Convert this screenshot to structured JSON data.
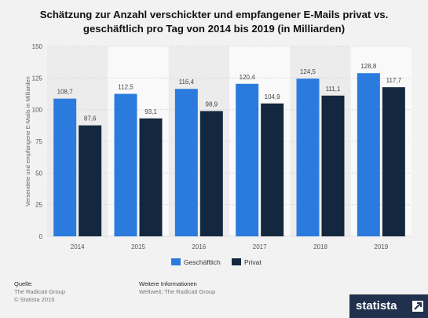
{
  "title": "Schätzung zur Anzahl verschickter und empfangener E-Mails privat vs. geschäftlich pro Tag von 2014 bis 2019 (in Milliarden)",
  "footer": {
    "source_heading": "Quelle:",
    "source_line1": "The Radicati Group",
    "source_line2": "© Statista 2015",
    "info_heading": "Weitere Informationen",
    "info_line1": "Weltweit; The Radicati Group"
  },
  "brand": {
    "name": "statista"
  },
  "colors": {
    "business": "#2b7bde",
    "private": "#13273f",
    "altband": "#ececec"
  },
  "chart_data": {
    "type": "bar",
    "categories": [
      "2014",
      "2015",
      "2016",
      "2017",
      "2018",
      "2019"
    ],
    "series": [
      {
        "name": "Geschäftlich",
        "values": [
          108.7,
          112.5,
          116.4,
          120.4,
          124.5,
          128.8
        ],
        "labels": [
          "108,7",
          "112,5",
          "116,4",
          "120,4",
          "124,5",
          "128,8"
        ]
      },
      {
        "name": "Privat",
        "values": [
          87.6,
          93.1,
          98.9,
          104.9,
          111.1,
          117.7
        ],
        "labels": [
          "87,6",
          "93,1",
          "98,9",
          "104,9",
          "111,1",
          "117,7"
        ]
      }
    ],
    "ylabel": "Versendete und empfangene E-Mails in Milliarden",
    "ylim": [
      0,
      150
    ],
    "yticks": [
      0,
      25,
      50,
      75,
      100,
      125,
      150
    ],
    "legend_position": "bottom"
  }
}
